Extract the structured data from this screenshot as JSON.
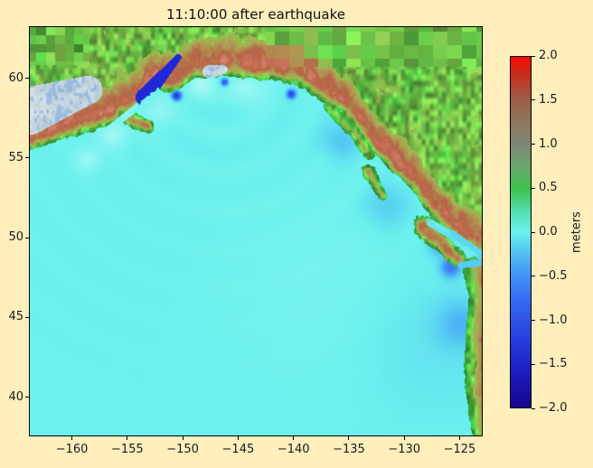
{
  "figure": {
    "background": "#ffefbd"
  },
  "chart_data": {
    "type": "heatmap",
    "title": "11:10:00 after earthquake",
    "description": "Tsunami surface elevation over the Gulf of Alaska / NE Pacific with shaded land topography",
    "xlim": [
      -163.8,
      -123.0
    ],
    "ylim": [
      37.6,
      63.2
    ],
    "x_ticks": [
      -160,
      -155,
      -150,
      -145,
      -140,
      -135,
      -130,
      -125
    ],
    "x_tick_labels": [
      "−160",
      "−155",
      "−150",
      "−145",
      "−140",
      "−135",
      "−130",
      "−125"
    ],
    "y_ticks": [
      40,
      45,
      50,
      55,
      60
    ],
    "y_tick_labels": [
      "40",
      "45",
      "50",
      "55",
      "60"
    ],
    "colorbar": {
      "label": "meters",
      "min": -2.0,
      "max": 2.0,
      "ticks": [
        2.0,
        1.5,
        1.0,
        0.5,
        0.0,
        -0.5,
        -1.0,
        -1.5,
        -2.0
      ],
      "tick_labels": [
        "2.0",
        "1.5",
        "1.0",
        "0.5",
        "0.0",
        "−0.5",
        "−1.0",
        "−1.5",
        "−2.0"
      ],
      "stops": [
        [
          2.0,
          "#fc0800"
        ],
        [
          1.8,
          "#c62e1e"
        ],
        [
          1.5,
          "#9c5f46"
        ],
        [
          1.2,
          "#8c7a64"
        ],
        [
          1.0,
          "#7e8578"
        ],
        [
          0.75,
          "#6aa66e"
        ],
        [
          0.5,
          "#3cc24e"
        ],
        [
          0.25,
          "#52dcaa"
        ],
        [
          0.0,
          "#6cf1ee"
        ],
        [
          -0.2,
          "#54c8f0"
        ],
        [
          -0.5,
          "#4292f8"
        ],
        [
          -0.8,
          "#3468f0"
        ],
        [
          -1.2,
          "#2840e0"
        ],
        [
          -1.6,
          "#1c1cc0"
        ],
        [
          -2.0,
          "#14058f"
        ]
      ]
    },
    "ocean_color": "#6cf1ee",
    "source": [
      -146.5,
      59.8
    ],
    "coast_north": [
      [
        -163.9,
        55.3
      ],
      [
        -162,
        55.9
      ],
      [
        -160,
        56.3
      ],
      [
        -158,
        56.7
      ],
      [
        -156.5,
        57.1
      ],
      [
        -155,
        57.7
      ],
      [
        -154,
        58.35
      ],
      [
        -153,
        58.9
      ],
      [
        -152.3,
        59.35
      ],
      [
        -151.6,
        59.05
      ],
      [
        -150.7,
        59.1
      ],
      [
        -149.9,
        59.5
      ],
      [
        -148.7,
        60.0
      ],
      [
        -147.8,
        60.0
      ],
      [
        -146.6,
        60.1
      ],
      [
        -145.5,
        60.15
      ],
      [
        -144,
        60.0
      ],
      [
        -142,
        59.85
      ],
      [
        -140.5,
        59.7
      ],
      [
        -139.3,
        59.45
      ],
      [
        -138.2,
        58.9
      ],
      [
        -137,
        58.35
      ],
      [
        -135.8,
        57.9
      ],
      [
        -134.7,
        57.2
      ],
      [
        -133.6,
        56.1
      ],
      [
        -132.4,
        55.1
      ],
      [
        -131.2,
        54.2
      ],
      [
        -130.2,
        53.6
      ],
      [
        -129.2,
        52.9
      ],
      [
        -128.4,
        52.1
      ],
      [
        -127.4,
        51.2
      ],
      [
        -126.8,
        50.85
      ],
      [
        -125.9,
        50.25
      ],
      [
        -124.8,
        49.55
      ],
      [
        -123.9,
        49.2
      ],
      [
        -123.2,
        48.95
      ],
      [
        -122.8,
        48.85
      ]
    ],
    "coast_east_lat_lon": [
      [
        37.5,
        -123.8
      ],
      [
        39,
        -124.2
      ],
      [
        40.5,
        -124.5
      ],
      [
        42,
        -124.6
      ],
      [
        43.5,
        -124.5
      ],
      [
        45,
        -124.3
      ],
      [
        46.2,
        -124.2
      ],
      [
        47,
        -124.4
      ],
      [
        47.8,
        -124.7
      ],
      [
        48.3,
        -124.8
      ],
      [
        48.6,
        -124.5
      ],
      [
        49,
        -123.2
      ]
    ],
    "islands": [
      {
        "name": "kodiak",
        "a": [
          -154.8,
          57.45
        ],
        "b": [
          -153.2,
          56.95
        ],
        "r0": 0.5,
        "r1": 0.42,
        "ef": 0.85,
        "s": 3.7
      },
      {
        "name": "se-alaska-islands-north",
        "a": [
          -136.8,
          58.25
        ],
        "b": [
          -135.0,
          56.8
        ],
        "r0": 0.35,
        "r1": 0.33,
        "ef": 0.55,
        "s": 9.1
      },
      {
        "name": "se-alaska-islands-south",
        "a": [
          -134.6,
          56.8
        ],
        "b": [
          -133.2,
          55.2
        ],
        "r0": 0.42,
        "r1": 0.34,
        "ef": 0.6,
        "s": 14.3
      },
      {
        "name": "haida-gwaii",
        "a": [
          -133.25,
          54.15
        ],
        "b": [
          -131.95,
          52.6
        ],
        "r0": 0.42,
        "r1": 0.26,
        "ef": 0.65,
        "s": 21.9
      },
      {
        "name": "vancouver-island",
        "a": [
          -128.25,
          50.7
        ],
        "b": [
          -125.05,
          48.6
        ],
        "r0": 0.66,
        "r1": 0.5,
        "ef": 0.8,
        "s": 33.1
      }
    ],
    "water_features": [
      {
        "name": "bristol-bay",
        "a": [
          -163.9,
          57.95
        ],
        "b": [
          -158.55,
          59.25
        ],
        "r0": 1.5,
        "r1": 0.9,
        "style": "bay",
        "eta": 0
      },
      {
        "name": "cook-inlet",
        "a": [
          -153.5,
          58.8
        ],
        "b": [
          -150.4,
          61.3
        ],
        "r0": 0.52,
        "r1": 0.2,
        "style": "sea",
        "eta": -1.3
      },
      {
        "name": "shelikof-strait",
        "a": [
          -156.5,
          56.9
        ],
        "b": [
          -153.8,
          58.35
        ],
        "r0": 0.2,
        "r1": 0.22,
        "style": "sea",
        "eta": 0.12
      },
      {
        "name": "prince-william-sound",
        "a": [
          -147.6,
          60.4
        ],
        "b": [
          -146.4,
          60.55
        ],
        "r0": 0.42,
        "r1": 0.3,
        "style": "bay",
        "eta": 0
      },
      {
        "name": "strait-of-georgia",
        "a": [
          -125.7,
          50.15
        ],
        "b": [
          -123.1,
          48.9
        ],
        "r0": 0.3,
        "r1": 0.28,
        "style": "sea",
        "eta": -0.1
      },
      {
        "name": "johnstone-strait",
        "a": [
          -127.7,
          50.95
        ],
        "b": [
          -125.7,
          50.15
        ],
        "r0": 0.22,
        "r1": 0.26,
        "style": "sea",
        "eta": -0.05
      },
      {
        "name": "juan-de-fuca",
        "a": [
          -124.9,
          48.28
        ],
        "b": [
          -123.35,
          48.42
        ],
        "r0": 0.2,
        "r1": 0.24,
        "style": "sea",
        "eta": -0.15
      }
    ],
    "wave_blobs": [
      {
        "c": [
          -150.55,
          58.9
        ],
        "r": 0.28,
        "eta": -1.1
      },
      {
        "c": [
          -146.2,
          59.75
        ],
        "r": 0.22,
        "eta": -0.8
      },
      {
        "c": [
          -140.2,
          59.0
        ],
        "r": 0.26,
        "eta": -0.9
      },
      {
        "c": [
          -148.5,
          59.6
        ],
        "r": 0.9,
        "eta": 0.22
      },
      {
        "c": [
          -144.0,
          59.3
        ],
        "r": 1.1,
        "eta": 0.18
      },
      {
        "c": [
          -152.2,
          57.9
        ],
        "r": 1.0,
        "eta": 0.15
      },
      {
        "c": [
          -156.2,
          56.5
        ],
        "r": 0.9,
        "eta": 0.2
      },
      {
        "c": [
          -158.6,
          54.9
        ],
        "r": 0.8,
        "eta": 0.17
      },
      {
        "c": [
          -125.8,
          48.15
        ],
        "r": 0.6,
        "eta": -0.5
      },
      {
        "c": [
          -126.8,
          49.5
        ],
        "r": 0.7,
        "eta": -0.25
      },
      {
        "c": [
          -131.6,
          52.0
        ],
        "r": 1.4,
        "eta": -0.15
      },
      {
        "c": [
          -135.7,
          56.1
        ],
        "r": 1.2,
        "eta": -0.18
      },
      {
        "c": [
          -124.9,
          44.6
        ],
        "r": 1.5,
        "eta": -0.2
      },
      {
        "c": [
          -127.5,
          43.5
        ],
        "r": 4.5,
        "eta": -0.06
      },
      {
        "c": [
          -137.0,
          47.0
        ],
        "r": 6.0,
        "eta": 0.04
      }
    ],
    "coarse_patches": [
      {
        "lon_min": -142.5,
        "lon_max": -122.9,
        "lat_min": 60.7,
        "lat_max": 63.3,
        "cellx": 1.3,
        "celly": 0.85
      },
      {
        "lon_min": -163.9,
        "lon_max": -158.4,
        "lat_min": 60.8,
        "lat_max": 63.3,
        "cellx": 0.85,
        "celly": 0.55
      }
    ],
    "land_stops": [
      [
        0.0,
        [
          50,
          168,
          58
        ]
      ],
      [
        0.15,
        [
          72,
          196,
          66
        ]
      ],
      [
        0.3,
        [
          116,
          198,
          74
        ]
      ],
      [
        0.45,
        [
          158,
          184,
          80
        ]
      ],
      [
        0.6,
        [
          177,
          155,
          84
        ]
      ],
      [
        0.78,
        [
          178,
          127,
          76
        ]
      ],
      [
        0.95,
        [
          183,
          100,
          70
        ]
      ],
      [
        1.2,
        [
          198,
          112,
          88
        ]
      ],
      [
        1.5,
        [
          216,
          142,
          122
        ]
      ]
    ],
    "water_stops": [
      [
        -2.0,
        [
          18,
          6,
          150
        ]
      ],
      [
        -1.5,
        [
          26,
          26,
          202
        ]
      ],
      [
        -1.0,
        [
          38,
          62,
          234
        ]
      ],
      [
        -0.6,
        [
          52,
          106,
          246
        ]
      ],
      [
        -0.35,
        [
          66,
          150,
          248
        ]
      ],
      [
        -0.15,
        [
          86,
          204,
          242
        ]
      ],
      [
        0.0,
        [
          108,
          241,
          238
        ]
      ],
      [
        0.35,
        [
          198,
          252,
          249
        ]
      ]
    ],
    "bay_colors": {
      "base": [
        163,
        192,
        206
      ],
      "light": [
        226,
        234,
        239
      ],
      "blue": [
        128,
        170,
        228
      ]
    }
  }
}
